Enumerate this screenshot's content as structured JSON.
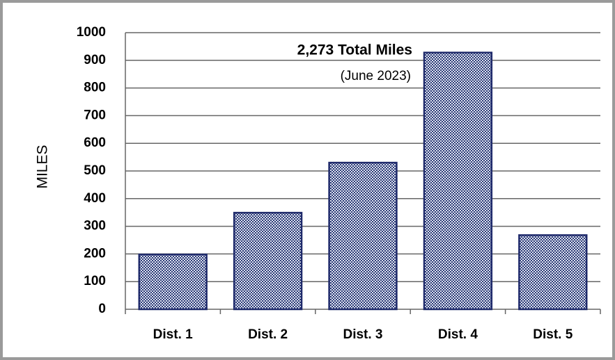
{
  "chart_data": {
    "type": "bar",
    "y_label": "MILES",
    "annotations": [
      "2,273 Total Miles",
      "(June 2023)"
    ],
    "categories": [
      "Dist. 1",
      "Dist. 2",
      "Dist. 3",
      "Dist. 4",
      "Dist. 5"
    ],
    "values": [
      198,
      349,
      530,
      928,
      268
    ],
    "color": "#1f2a6b",
    "ylim": [
      0,
      1000
    ],
    "yticks": [
      0,
      100,
      200,
      300,
      400,
      500,
      600,
      700,
      800,
      900,
      1000
    ],
    "grid": true
  }
}
